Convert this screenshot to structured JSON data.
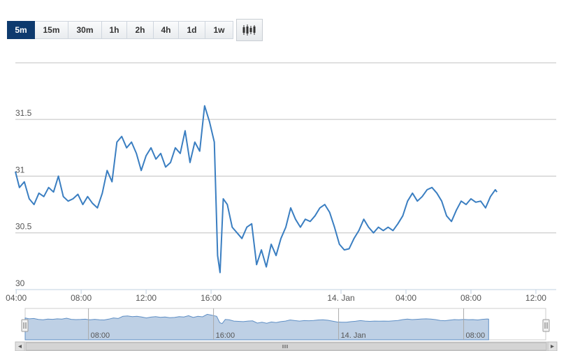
{
  "toolbar": {
    "timeframes": [
      {
        "label": "5m",
        "active": true
      },
      {
        "label": "15m",
        "active": false
      },
      {
        "label": "30m",
        "active": false
      },
      {
        "label": "1h",
        "active": false
      },
      {
        "label": "2h",
        "active": false
      },
      {
        "label": "4h",
        "active": false
      },
      {
        "label": "1d",
        "active": false
      },
      {
        "label": "1w",
        "active": false
      }
    ],
    "chart_type_icon": "candlestick-icon"
  },
  "navigator": {
    "labels": [
      "08:00",
      "16:00",
      "14. Jan",
      "08:00"
    ]
  },
  "colors": {
    "line": "#3a7ec1",
    "active_button": "#0e3a6e",
    "navigator_fill": "#b3c8e0"
  },
  "chart_data": {
    "type": "line",
    "ylim": [
      30,
      32
    ],
    "y_ticks": [
      "30",
      "30.5",
      "31",
      "31.5"
    ],
    "x_ticks": [
      "04:00",
      "08:00",
      "12:00",
      "16:00",
      "14. Jan",
      "04:00",
      "08:00",
      "12:00"
    ],
    "x_tick_hours": [
      4,
      8,
      12,
      16,
      24,
      28,
      32,
      36
    ],
    "xlim_hours": [
      3.95,
      37.25
    ],
    "grid": true,
    "legend": "none",
    "series": [
      {
        "points": [
          [
            3.95,
            31.04
          ],
          [
            4.2,
            30.9
          ],
          [
            4.5,
            30.95
          ],
          [
            4.8,
            30.8
          ],
          [
            5.1,
            30.75
          ],
          [
            5.4,
            30.85
          ],
          [
            5.7,
            30.82
          ],
          [
            6.0,
            30.9
          ],
          [
            6.3,
            30.86
          ],
          [
            6.6,
            31.0
          ],
          [
            6.9,
            30.82
          ],
          [
            7.2,
            30.78
          ],
          [
            7.5,
            30.8
          ],
          [
            7.8,
            30.84
          ],
          [
            8.1,
            30.75
          ],
          [
            8.4,
            30.82
          ],
          [
            8.7,
            30.76
          ],
          [
            9.0,
            30.72
          ],
          [
            9.3,
            30.85
          ],
          [
            9.6,
            31.05
          ],
          [
            9.9,
            30.95
          ],
          [
            10.2,
            31.3
          ],
          [
            10.5,
            31.35
          ],
          [
            10.8,
            31.25
          ],
          [
            11.1,
            31.3
          ],
          [
            11.4,
            31.2
          ],
          [
            11.7,
            31.05
          ],
          [
            12.0,
            31.18
          ],
          [
            12.3,
            31.25
          ],
          [
            12.6,
            31.15
          ],
          [
            12.9,
            31.2
          ],
          [
            13.2,
            31.08
          ],
          [
            13.5,
            31.12
          ],
          [
            13.8,
            31.25
          ],
          [
            14.1,
            31.2
          ],
          [
            14.4,
            31.4
          ],
          [
            14.7,
            31.12
          ],
          [
            15.0,
            31.3
          ],
          [
            15.3,
            31.22
          ],
          [
            15.6,
            31.62
          ],
          [
            15.9,
            31.48
          ],
          [
            16.2,
            31.3
          ],
          [
            16.4,
            30.3
          ],
          [
            16.55,
            30.15
          ],
          [
            16.75,
            30.8
          ],
          [
            17.0,
            30.75
          ],
          [
            17.3,
            30.55
          ],
          [
            17.6,
            30.5
          ],
          [
            17.9,
            30.45
          ],
          [
            18.2,
            30.55
          ],
          [
            18.5,
            30.58
          ],
          [
            18.8,
            30.22
          ],
          [
            19.1,
            30.35
          ],
          [
            19.4,
            30.2
          ],
          [
            19.7,
            30.4
          ],
          [
            20.0,
            30.3
          ],
          [
            20.3,
            30.45
          ],
          [
            20.6,
            30.55
          ],
          [
            20.9,
            30.72
          ],
          [
            21.2,
            30.62
          ],
          [
            21.5,
            30.55
          ],
          [
            21.8,
            30.62
          ],
          [
            22.1,
            30.6
          ],
          [
            22.4,
            30.65
          ],
          [
            22.7,
            30.72
          ],
          [
            23.0,
            30.75
          ],
          [
            23.3,
            30.68
          ],
          [
            23.6,
            30.55
          ],
          [
            23.9,
            30.4
          ],
          [
            24.2,
            30.35
          ],
          [
            24.5,
            30.36
          ],
          [
            24.8,
            30.45
          ],
          [
            25.1,
            30.52
          ],
          [
            25.4,
            30.62
          ],
          [
            25.7,
            30.55
          ],
          [
            26.0,
            30.5
          ],
          [
            26.3,
            30.55
          ],
          [
            26.6,
            30.52
          ],
          [
            26.9,
            30.55
          ],
          [
            27.2,
            30.52
          ],
          [
            27.5,
            30.58
          ],
          [
            27.8,
            30.65
          ],
          [
            28.1,
            30.78
          ],
          [
            28.4,
            30.85
          ],
          [
            28.7,
            30.78
          ],
          [
            29.0,
            30.82
          ],
          [
            29.3,
            30.88
          ],
          [
            29.6,
            30.9
          ],
          [
            29.9,
            30.85
          ],
          [
            30.2,
            30.78
          ],
          [
            30.5,
            30.65
          ],
          [
            30.8,
            30.6
          ],
          [
            31.1,
            30.7
          ],
          [
            31.4,
            30.78
          ],
          [
            31.7,
            30.75
          ],
          [
            32.0,
            30.8
          ],
          [
            32.3,
            30.77
          ],
          [
            32.6,
            30.78
          ],
          [
            32.9,
            30.72
          ],
          [
            33.2,
            30.82
          ],
          [
            33.5,
            30.88
          ],
          [
            33.6,
            30.86
          ]
        ]
      }
    ]
  }
}
